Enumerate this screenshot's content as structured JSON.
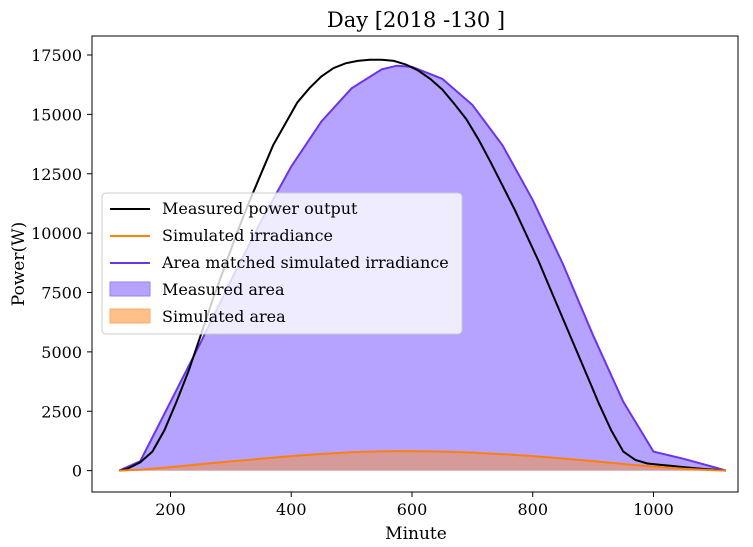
{
  "chart_data": {
    "type": "area",
    "title": "Day [2018 -130 ]",
    "xlabel": "Minute",
    "ylabel": "Power(W)",
    "xlim": [
      70,
      1140
    ],
    "ylim": [
      -900,
      18300
    ],
    "x_ticks": [
      200,
      400,
      600,
      800,
      1000
    ],
    "y_ticks": [
      0,
      2500,
      5000,
      7500,
      10000,
      12500,
      15000,
      17500
    ],
    "grid": false,
    "legend_placement": "center-left",
    "colors": {
      "measured": "#000000",
      "simulated": "#ff7f0e",
      "area_matched": "#6a35e8",
      "measured_area_fill": "#b6a2ff",
      "simulated_area_fill": "#ffb87a",
      "overlap_fill": "#d69a9a"
    },
    "series": [
      {
        "name": "Measured power output",
        "kind": "line",
        "x": [
          115,
          130,
          150,
          170,
          190,
          210,
          230,
          250,
          270,
          290,
          310,
          330,
          350,
          370,
          390,
          410,
          430,
          450,
          470,
          490,
          510,
          530,
          550,
          570,
          590,
          610,
          630,
          650,
          670,
          690,
          710,
          730,
          750,
          770,
          790,
          810,
          830,
          850,
          870,
          890,
          910,
          930,
          950,
          970,
          990,
          1010,
          1030,
          1050,
          1070,
          1090,
          1110,
          1120
        ],
        "y": [
          0,
          100,
          350,
          800,
          1700,
          2900,
          4200,
          5700,
          7200,
          8600,
          10000,
          11300,
          12500,
          13700,
          14600,
          15500,
          16100,
          16600,
          16950,
          17150,
          17250,
          17300,
          17300,
          17250,
          17100,
          16850,
          16500,
          16050,
          15450,
          14800,
          13950,
          13000,
          12000,
          11000,
          9900,
          8800,
          7600,
          6400,
          5200,
          4000,
          2800,
          1700,
          800,
          450,
          300,
          250,
          200,
          150,
          100,
          60,
          20,
          0
        ]
      },
      {
        "name": "Simulated irradiance",
        "kind": "line",
        "x": [
          115,
          150,
          200,
          250,
          300,
          350,
          400,
          450,
          500,
          550,
          575,
          600,
          650,
          700,
          750,
          800,
          850,
          900,
          950,
          1000,
          1050,
          1100,
          1120
        ],
        "y": [
          0,
          40,
          150,
          270,
          390,
          500,
          610,
          700,
          770,
          810,
          820,
          820,
          800,
          760,
          690,
          610,
          510,
          400,
          280,
          170,
          80,
          15,
          0
        ]
      },
      {
        "name": "Area matched simulated irradiance",
        "kind": "line",
        "x": [
          115,
          150,
          200,
          250,
          300,
          350,
          400,
          450,
          500,
          550,
          575,
          600,
          650,
          700,
          750,
          800,
          850,
          900,
          950,
          1000,
          1050,
          1100,
          1120
        ],
        "y": [
          0,
          400,
          2900,
          5400,
          8000,
          10500,
          12800,
          14700,
          16100,
          16900,
          17050,
          17000,
          16500,
          15400,
          13700,
          11400,
          8700,
          5700,
          2900,
          800,
          500,
          150,
          0
        ]
      },
      {
        "name": "Measured area",
        "kind": "fill"
      },
      {
        "name": "Simulated area",
        "kind": "fill"
      }
    ]
  }
}
